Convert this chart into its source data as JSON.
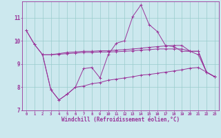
{
  "background_color": "#cce8ee",
  "line_color": "#993399",
  "grid_color": "#99cccc",
  "xlabel": "Windchill (Refroidissement éolien,°C)",
  "xlim_min": -0.5,
  "xlim_max": 23.5,
  "ylim_min": 7.0,
  "ylim_max": 11.7,
  "yticks": [
    7,
    8,
    9,
    10,
    11
  ],
  "xticks": [
    0,
    1,
    2,
    3,
    4,
    5,
    6,
    7,
    8,
    9,
    10,
    11,
    12,
    13,
    14,
    15,
    16,
    17,
    18,
    19,
    20,
    21,
    22,
    23
  ],
  "series_main": [
    10.45,
    9.85,
    9.4,
    7.9,
    7.45,
    7.7,
    8.0,
    8.8,
    8.85,
    8.4,
    9.4,
    9.9,
    10.0,
    11.05,
    11.55,
    10.7,
    10.4,
    9.8,
    9.75,
    9.55,
    9.55,
    9.4,
    8.65,
    8.45
  ],
  "series_flat1": [
    9.4,
    9.4,
    9.4,
    9.4,
    9.45,
    9.5,
    9.52,
    9.55,
    9.55,
    9.57,
    9.57,
    9.6,
    9.62,
    9.65,
    9.68,
    9.72,
    9.75,
    9.78,
    9.8,
    9.8,
    9.55,
    9.55,
    8.65,
    8.45
  ],
  "series_flat2": [
    9.4,
    9.4,
    9.4,
    9.4,
    9.42,
    9.45,
    9.47,
    9.5,
    9.5,
    9.52,
    9.52,
    9.53,
    9.55,
    9.57,
    9.6,
    9.62,
    9.65,
    9.65,
    9.65,
    9.65,
    9.55,
    9.55,
    8.65,
    8.45
  ],
  "series_low": [
    10.45,
    9.85,
    9.4,
    7.9,
    7.45,
    7.7,
    8.0,
    8.05,
    8.15,
    8.2,
    8.3,
    8.35,
    8.4,
    8.45,
    8.52,
    8.55,
    8.6,
    8.65,
    8.7,
    8.75,
    8.82,
    8.85,
    8.65,
    8.45
  ]
}
